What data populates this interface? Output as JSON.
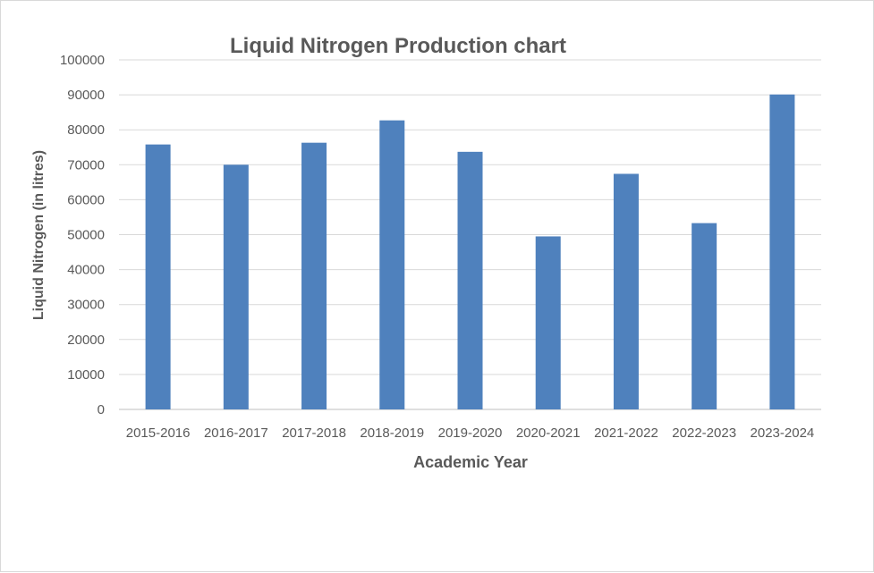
{
  "chart_data": {
    "type": "bar",
    "title": "Liquid Nitrogen Production chart",
    "xlabel": "Academic Year",
    "ylabel": "Liquid Nitrogen (in litres)",
    "categories": [
      "2015-2016",
      "2016-2017",
      "2017-2018",
      "2018-2019",
      "2019-2020",
      "2020-2021",
      "2021-2022",
      "2022-2023",
      "2023-2024"
    ],
    "series": [
      {
        "values": [
          75800,
          70000,
          76300,
          82700,
          73700,
          49500,
          67400,
          53300,
          90100
        ]
      }
    ],
    "ylim": [
      0,
      100000
    ],
    "yticks": [
      "0",
      "10000",
      "20000",
      "30000",
      "40000",
      "50000",
      "60000",
      "70000",
      "80000",
      "90000",
      "100000"
    ],
    "grid": true,
    "legend": "none",
    "colors": {
      "bar": "#4f81bd"
    }
  }
}
